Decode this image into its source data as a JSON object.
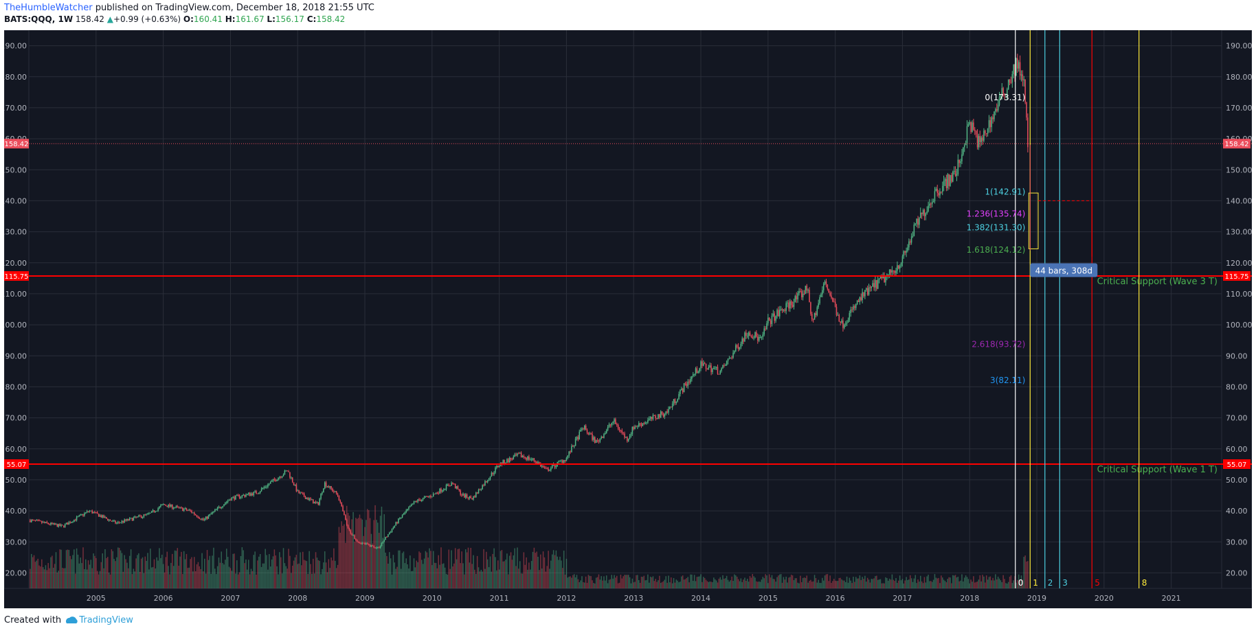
{
  "header": {
    "author": "TheHumbleWatcher",
    "published": "published on TradingView.com, December 18, 2018 21:55 UTC",
    "symbol": "BATS:QQQ, 1W",
    "last": "158.42",
    "arrow": "▲",
    "change": "+0.99 (+0.63%)",
    "o_label": "O:",
    "o": "160.41",
    "h_label": "H:",
    "h": "161.67",
    "l_label": "L:",
    "l": "156.17",
    "c_label": "C:",
    "c": "158.42"
  },
  "footer": {
    "created": "Created with",
    "brand": "TradingView"
  },
  "colors": {
    "background": "#131722",
    "up": "#53b987",
    "down": "#eb4d5c",
    "support": "#ff0000"
  },
  "chart_data": {
    "type": "candlestick",
    "ylim": [
      15,
      195
    ],
    "xlim": [
      2004.0,
      2021.75
    ],
    "y_ticks": [
      "190.00",
      "180.00",
      "170.00",
      "160.00",
      "150.00",
      "140.00",
      "130.00",
      "120.00",
      "110.00",
      "100.00",
      "90.00",
      "80.00",
      "70.00",
      "60.00",
      "50.00",
      "40.00",
      "30.00",
      "20.00"
    ],
    "x_ticks": [
      "2005",
      "2006",
      "2007",
      "2008",
      "2009",
      "2010",
      "2011",
      "2012",
      "2013",
      "2014",
      "2015",
      "2016",
      "2017",
      "2018",
      "2019",
      "2020",
      "2021"
    ],
    "price_path": [
      [
        2004.0,
        37
      ],
      [
        2004.5,
        35
      ],
      [
        2004.9,
        40
      ],
      [
        2005.3,
        36
      ],
      [
        2005.8,
        39
      ],
      [
        2006.0,
        42
      ],
      [
        2006.4,
        40
      ],
      [
        2006.6,
        37
      ],
      [
        2007.0,
        44
      ],
      [
        2007.4,
        46
      ],
      [
        2007.85,
        53
      ],
      [
        2008.0,
        46
      ],
      [
        2008.3,
        42
      ],
      [
        2008.4,
        49
      ],
      [
        2008.6,
        45
      ],
      [
        2008.75,
        34
      ],
      [
        2008.9,
        30
      ],
      [
        2009.2,
        28
      ],
      [
        2009.5,
        37
      ],
      [
        2009.75,
        43
      ],
      [
        2010.0,
        45
      ],
      [
        2010.3,
        49
      ],
      [
        2010.45,
        45
      ],
      [
        2010.6,
        44
      ],
      [
        2011.0,
        55
      ],
      [
        2011.3,
        58
      ],
      [
        2011.55,
        56
      ],
      [
        2011.7,
        53
      ],
      [
        2012.0,
        57
      ],
      [
        2012.25,
        67
      ],
      [
        2012.45,
        62
      ],
      [
        2012.7,
        69
      ],
      [
        2012.9,
        63
      ],
      [
        2013.0,
        67
      ],
      [
        2013.5,
        72
      ],
      [
        2013.75,
        80
      ],
      [
        2014.0,
        87
      ],
      [
        2014.3,
        85
      ],
      [
        2014.7,
        98
      ],
      [
        2014.9,
        95
      ],
      [
        2015.0,
        101
      ],
      [
        2015.4,
        108
      ],
      [
        2015.6,
        112
      ],
      [
        2015.65,
        100
      ],
      [
        2015.85,
        114
      ],
      [
        2016.1,
        100
      ],
      [
        2016.4,
        109
      ],
      [
        2016.6,
        113
      ],
      [
        2016.8,
        116
      ],
      [
        2017.0,
        121
      ],
      [
        2017.2,
        132
      ],
      [
        2017.5,
        143
      ],
      [
        2017.8,
        149
      ],
      [
        2018.0,
        165
      ],
      [
        2018.15,
        158
      ],
      [
        2018.4,
        170
      ],
      [
        2018.7,
        184
      ],
      [
        2018.8,
        180
      ],
      [
        2018.87,
        158
      ]
    ],
    "current_price": 158.42,
    "horizontal_levels": [
      {
        "price": 115.75,
        "label": "Critical Support (Wave 3 T)",
        "tag": "115.75"
      },
      {
        "price": 55.07,
        "label": "Critical Support (Wave 1 T)",
        "tag": "55.07"
      }
    ],
    "price_tag": "158.42",
    "fib_extension": [
      {
        "label": "0(173.31)",
        "value": 173.31,
        "color": "#ffffff"
      },
      {
        "label": "1(142.91)",
        "value": 142.91,
        "color": "#4dd0e1"
      },
      {
        "label": "1.236(135.74)",
        "value": 135.74,
        "color": "#e040fb"
      },
      {
        "label": "1.382(131.30)",
        "value": 131.3,
        "color": "#4dd0e1"
      },
      {
        "label": "1.618(124.12)",
        "value": 124.12,
        "color": "#4caf50"
      },
      {
        "label": "2.618(93.72)",
        "value": 93.72,
        "color": "#9c27b0"
      },
      {
        "label": "3(82.11)",
        "value": 82.11,
        "color": "#2196f3"
      }
    ],
    "time_fib": [
      {
        "label": "0",
        "x": 2018.68,
        "color": "#ffffff"
      },
      {
        "label": "1",
        "x": 2018.9,
        "color": "#ffeb3b"
      },
      {
        "label": "2",
        "x": 2019.12,
        "color": "#4dd0e1"
      },
      {
        "label": "3",
        "x": 2019.34,
        "color": "#4dd0e1"
      },
      {
        "label": "5",
        "x": 2019.82,
        "color": "#ff0000"
      },
      {
        "label": "8",
        "x": 2020.52,
        "color": "#ffeb3b"
      }
    ],
    "measure_label": "44 bars, 308d"
  }
}
